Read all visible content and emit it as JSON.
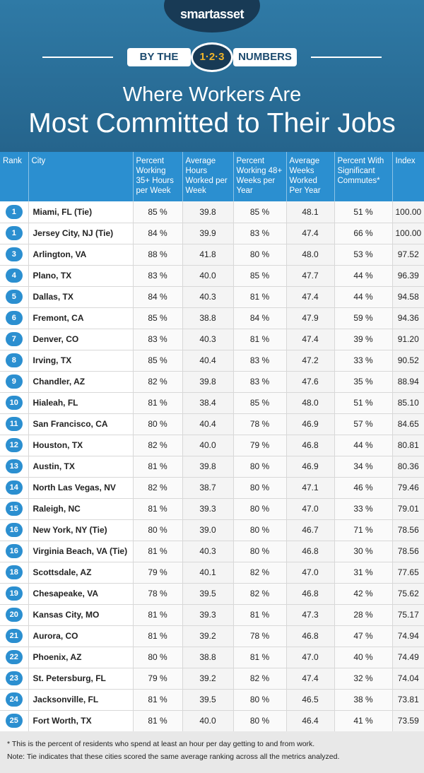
{
  "header": {
    "brand": "smartasset",
    "banner": [
      "BY THE",
      "1·2·3",
      "NUMBERS"
    ],
    "title": [
      "Where Workers Are",
      "Most Committed to Their Jobs"
    ]
  },
  "table": {
    "columns": [
      "Rank",
      "City",
      "Percent Working 35+ Hours per Week",
      "Average Hours Worked per Week",
      "Percent Working 48+ Weeks per Year",
      "Average Weeks Worked Per Year",
      "Percent With Significant Commutes*",
      "Index"
    ],
    "rows": [
      [
        "1",
        "Miami, FL (Tie)",
        "85 %",
        "39.8",
        "85 %",
        "48.1",
        "51 %",
        "100.00"
      ],
      [
        "1",
        "Jersey City, NJ (Tie)",
        "84 %",
        "39.9",
        "83 %",
        "47.4",
        "66 %",
        "100.00"
      ],
      [
        "3",
        "Arlington, VA",
        "88 %",
        "41.8",
        "80 %",
        "48.0",
        "53 %",
        "97.52"
      ],
      [
        "4",
        "Plano, TX",
        "83 %",
        "40.0",
        "85 %",
        "47.7",
        "44 %",
        "96.39"
      ],
      [
        "5",
        "Dallas, TX",
        "84 %",
        "40.3",
        "81 %",
        "47.4",
        "44 %",
        "94.58"
      ],
      [
        "6",
        "Fremont, CA",
        "85 %",
        "38.8",
        "84 %",
        "47.9",
        "59 %",
        "94.36"
      ],
      [
        "7",
        "Denver, CO",
        "83 %",
        "40.3",
        "81 %",
        "47.4",
        "39 %",
        "91.20"
      ],
      [
        "8",
        "Irving, TX",
        "85 %",
        "40.4",
        "83 %",
        "47.2",
        "33 %",
        "90.52"
      ],
      [
        "9",
        "Chandler, AZ",
        "82 %",
        "39.8",
        "83 %",
        "47.6",
        "35 %",
        "88.94"
      ],
      [
        "10",
        "Hialeah, FL",
        "81 %",
        "38.4",
        "85 %",
        "48.0",
        "51 %",
        "85.10"
      ],
      [
        "11",
        "San Francisco, CA",
        "80 %",
        "40.4",
        "78 %",
        "46.9",
        "57 %",
        "84.65"
      ],
      [
        "12",
        "Houston, TX",
        "82 %",
        "40.0",
        "79 %",
        "46.8",
        "44 %",
        "80.81"
      ],
      [
        "13",
        "Austin, TX",
        "81 %",
        "39.8",
        "80 %",
        "46.9",
        "34 %",
        "80.36"
      ],
      [
        "14",
        "North Las Vegas, NV",
        "82 %",
        "38.7",
        "80 %",
        "47.1",
        "46 %",
        "79.46"
      ],
      [
        "15",
        "Raleigh, NC",
        "81 %",
        "39.3",
        "80 %",
        "47.0",
        "33 %",
        "79.01"
      ],
      [
        "16",
        "New York, NY (Tie)",
        "80 %",
        "39.0",
        "80 %",
        "46.7",
        "71 %",
        "78.56"
      ],
      [
        "16",
        "Virginia Beach, VA (Tie)",
        "81 %",
        "40.3",
        "80 %",
        "46.8",
        "30 %",
        "78.56"
      ],
      [
        "18",
        "Scottsdale, AZ",
        "79 %",
        "40.1",
        "82 %",
        "47.0",
        "31 %",
        "77.65"
      ],
      [
        "19",
        "Chesapeake, VA",
        "78 %",
        "39.5",
        "82 %",
        "46.8",
        "42 %",
        "75.62"
      ],
      [
        "20",
        "Kansas City, MO",
        "81 %",
        "39.3",
        "81 %",
        "47.3",
        "28 %",
        "75.17"
      ],
      [
        "21",
        "Aurora, CO",
        "81 %",
        "39.2",
        "78 %",
        "46.8",
        "47 %",
        "74.94"
      ],
      [
        "22",
        "Phoenix, AZ",
        "80 %",
        "38.8",
        "81 %",
        "47.0",
        "40 %",
        "74.49"
      ],
      [
        "23",
        "St. Petersburg, FL",
        "79 %",
        "39.2",
        "82 %",
        "47.4",
        "32 %",
        "74.04"
      ],
      [
        "24",
        "Jacksonville, FL",
        "81 %",
        "39.5",
        "80 %",
        "46.5",
        "38 %",
        "73.81"
      ],
      [
        "25",
        "Fort Worth, TX",
        "81 %",
        "40.0",
        "80 %",
        "46.4",
        "41 %",
        "73.59"
      ]
    ]
  },
  "footnotes": [
    "* This is the percent of residents who spend at least an hour per day getting to and from work.",
    "Note: Tie indicates that these cities scored the same average ranking across all the metrics analyzed."
  ]
}
